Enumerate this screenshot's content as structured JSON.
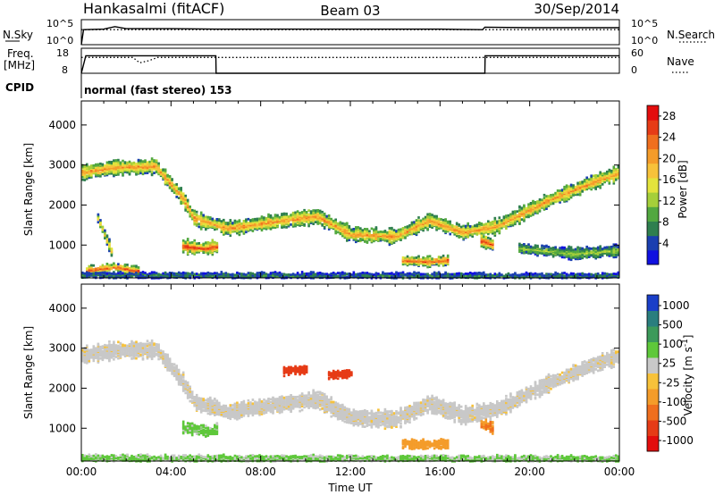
{
  "header": {
    "station": "Hankasalmi (fitACF)",
    "beam": "Beam 03",
    "date": "30/Sep/2014"
  },
  "noise_panel": {
    "left_label": "N.Sky",
    "left_top": "10^5",
    "left_bottom": "10^0",
    "right_label": "N.Search",
    "right_top": "10^5",
    "right_bottom": "10^0",
    "left_legend_style": "solid",
    "right_legend_style": "dotted"
  },
  "freq_panel": {
    "left_label": "Freq.",
    "left_unit": "[MHz]",
    "left_top": "18",
    "left_bottom": "8",
    "right_label": "Nave",
    "right_top": "60",
    "right_bottom": "0"
  },
  "cpid_panel": {
    "label": "CPID",
    "text": "normal (fast stereo) 153"
  },
  "chart_data": [
    {
      "type": "line",
      "name": "noise",
      "series": [
        {
          "name": "N.Sky",
          "style": "solid",
          "x": [
            0,
            0.1,
            1,
            1.5,
            2,
            4,
            6,
            8,
            12,
            16,
            17.9,
            18,
            20,
            24
          ],
          "y": [
            0,
            3.0,
            3.1,
            3.6,
            3.2,
            3.2,
            3.1,
            3.1,
            3.1,
            3.1,
            3.0,
            3.5,
            3.4,
            3.4
          ]
        },
        {
          "name": "N.Search",
          "style": "dotted",
          "x": [
            0,
            24
          ],
          "y": [
            3.0,
            3.0
          ]
        }
      ],
      "ylim": [
        0,
        5
      ],
      "xlim": [
        0,
        24
      ]
    },
    {
      "type": "line",
      "name": "freq-nave",
      "series": [
        {
          "name": "Freq.",
          "style": "solid",
          "x": [
            0,
            0.2,
            6,
            6.01,
            18,
            18.01,
            24
          ],
          "y": [
            8,
            15,
            15,
            8,
            8,
            15,
            15
          ]
        },
        {
          "name": "Nave",
          "style": "dotted",
          "x": [
            0,
            2.3,
            2.6,
            3,
            3.4,
            24
          ],
          "y": [
            38,
            38,
            25,
            30,
            38,
            38
          ]
        }
      ],
      "ylim_left": [
        8,
        18
      ],
      "ylim_right": [
        0,
        60
      ],
      "xlim": [
        0,
        24
      ]
    },
    {
      "type": "heatmap",
      "name": "power",
      "xlabel": "",
      "ylabel": "Slant Range [km]",
      "xlim": [
        0,
        24
      ],
      "ylim": [
        180,
        4600
      ],
      "yticks": [
        1000,
        2000,
        3000,
        4000
      ],
      "colorbar": {
        "label": "Power [dB]",
        "ticks": [
          4,
          8,
          12,
          16,
          20,
          24,
          28
        ],
        "range": [
          0,
          30
        ],
        "colors": [
          "#1010e0",
          "#1a3fb0",
          "#2f7f4f",
          "#52a840",
          "#a5cf3a",
          "#e3e33c",
          "#f7c23a",
          "#f49c2a",
          "#ef6f1e",
          "#e63b16",
          "#e30d0d"
        ]
      },
      "echo_bands": [
        {
          "center": [
            [
              0.0,
              2850
            ],
            [
              1.5,
              2980
            ],
            [
              3.3,
              3000
            ],
            [
              4.5,
              2200
            ],
            [
              5.0,
              1700
            ],
            [
              6.5,
              1450
            ],
            [
              9.0,
              1650
            ],
            [
              10.5,
              1750
            ],
            [
              12.0,
              1300
            ],
            [
              14.0,
              1250
            ],
            [
              15.5,
              1650
            ],
            [
              17.0,
              1350
            ],
            [
              18.5,
              1500
            ],
            [
              21.0,
              2200
            ],
            [
              23.0,
              2650
            ],
            [
              24.0,
              2850
            ]
          ],
          "halfwidth": 170,
          "peak": 22
        },
        {
          "center": [
            [
              0.2,
              400
            ],
            [
              1.5,
              480
            ],
            [
              2.5,
              380
            ]
          ],
          "halfwidth": 110,
          "peak": 26
        },
        {
          "center": [
            [
              0.7,
              1700
            ],
            [
              1.0,
              1300
            ],
            [
              1.3,
              900
            ]
          ],
          "halfwidth": 120,
          "peak": 18
        },
        {
          "center": [
            [
              4.5,
              1000
            ],
            [
              5.5,
              950
            ],
            [
              6.0,
              1000
            ]
          ],
          "halfwidth": 150,
          "peak": 27
        },
        {
          "center": [
            [
              14.3,
              650
            ],
            [
              15.5,
              620
            ],
            [
              16.3,
              650
            ]
          ],
          "halfwidth": 110,
          "peak": 26
        },
        {
          "center": [
            [
              17.8,
              1150
            ],
            [
              18.3,
              1050
            ]
          ],
          "halfwidth": 130,
          "peak": 27
        },
        {
          "center": [
            [
              19.5,
              950
            ],
            [
              22.0,
              820
            ],
            [
              24.0,
              900
            ]
          ],
          "halfwidth": 130,
          "peak": 12
        },
        {
          "center": [
            [
              0.0,
              280
            ],
            [
              24.0,
              260
            ]
          ],
          "halfwidth": 70,
          "peak": 6
        }
      ]
    },
    {
      "type": "heatmap",
      "name": "velocity",
      "xlabel": "Time UT",
      "ylabel": "Slant Range [km]",
      "xlim": [
        0,
        24
      ],
      "ylim": [
        180,
        4600
      ],
      "xticks": [
        "00:00",
        "04:00",
        "08:00",
        "12:00",
        "16:00",
        "20:00",
        "00:00"
      ],
      "yticks": [
        1000,
        2000,
        3000,
        4000
      ],
      "colorbar": {
        "label": "Velocity [m s^-1]",
        "ticks": [
          "1000",
          "500",
          "100",
          "25",
          "-25",
          "-100",
          "-500",
          "-1000"
        ],
        "colors": [
          "#1a3fc8",
          "#2a7e7e",
          "#3c9a5a",
          "#5ec83a",
          "#c8c8c8",
          "#f7c23a",
          "#f49c2a",
          "#ef6f1e",
          "#e63b16",
          "#e30d0d"
        ]
      },
      "echo_bands": [
        {
          "center": [
            [
              0.0,
              2850
            ],
            [
              1.5,
              2980
            ],
            [
              3.3,
              3000
            ],
            [
              4.5,
              2200
            ],
            [
              5.0,
              1700
            ],
            [
              6.5,
              1450
            ],
            [
              9.0,
              1650
            ],
            [
              10.5,
              1750
            ],
            [
              12.0,
              1300
            ],
            [
              14.0,
              1250
            ],
            [
              15.5,
              1650
            ],
            [
              17.0,
              1350
            ],
            [
              18.5,
              1500
            ],
            [
              21.0,
              2200
            ],
            [
              23.0,
              2650
            ],
            [
              24.0,
              2850
            ]
          ],
          "halfwidth": 190,
          "value": 0
        },
        {
          "center": [
            [
              9.0,
              2450
            ],
            [
              10.0,
              2500
            ]
          ],
          "halfwidth": 90,
          "value": -600
        },
        {
          "center": [
            [
              11.0,
              2350
            ],
            [
              12.0,
              2400
            ]
          ],
          "halfwidth": 90,
          "value": -700
        },
        {
          "center": [
            [
              14.3,
              650
            ],
            [
              15.5,
              620
            ],
            [
              16.3,
              650
            ]
          ],
          "halfwidth": 110,
          "value": -150
        },
        {
          "center": [
            [
              17.8,
              1150
            ],
            [
              18.3,
              1050
            ]
          ],
          "halfwidth": 120,
          "value": -300
        },
        {
          "center": [
            [
              4.5,
              1050
            ],
            [
              5.5,
              950
            ],
            [
              6.0,
              1000
            ]
          ],
          "halfwidth": 130,
          "value": 120
        },
        {
          "center": [
            [
              0.0,
              280
            ],
            [
              24.0,
              260
            ]
          ],
          "halfwidth": 80,
          "value": 110
        }
      ]
    }
  ]
}
